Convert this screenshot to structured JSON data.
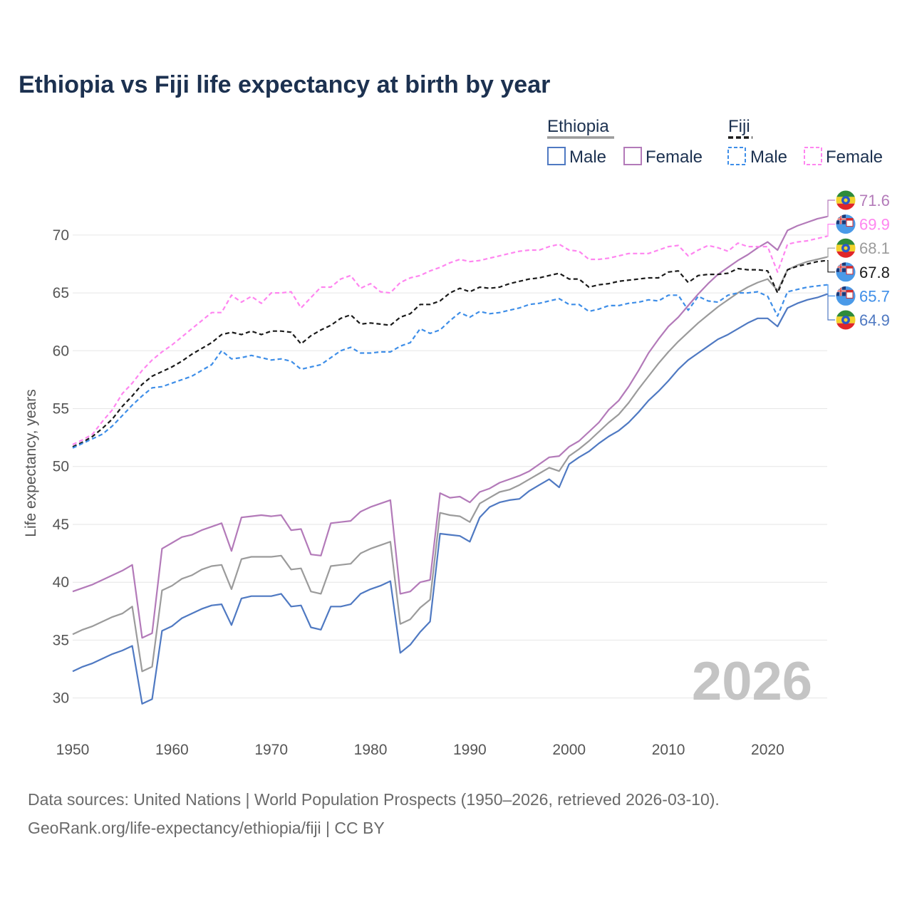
{
  "title": "Ethiopia vs Fiji life expectancy at birth by year",
  "watermark_year": "2026",
  "source_line1": "Data sources: United Nations | World Population Prospects (1950–2026, retrieved 2026-03-10).",
  "source_line2": "GeoRank.org/life-expectancy/ethiopia/fiji | CC BY",
  "legend": {
    "ethiopia_label": "Ethiopia",
    "fiji_label": "Fiji",
    "items": [
      {
        "country": "Ethiopia",
        "sex": "Male",
        "color": "#4f79c2",
        "dashed": false
      },
      {
        "country": "Ethiopia",
        "sex": "Female",
        "color": "#b37ab9",
        "dashed": false
      },
      {
        "country": "Fiji",
        "sex": "Male",
        "color": "#3e8ee8",
        "dashed": true
      },
      {
        "country": "Fiji",
        "sex": "Female",
        "color": "#ff85f0",
        "dashed": true
      }
    ]
  },
  "chart_data": {
    "type": "line",
    "title": "Ethiopia vs Fiji life expectancy at birth by year",
    "xlabel": "",
    "ylabel": "Life expectancy, years",
    "xlim": [
      1950,
      2026
    ],
    "ylim": [
      26.9,
      74.3
    ],
    "x_ticks": [
      1950,
      1960,
      1970,
      1980,
      1990,
      2000,
      2010,
      2020
    ],
    "y_ticks": [
      30,
      35,
      40,
      45,
      50,
      55,
      60,
      65,
      70
    ],
    "grid": true,
    "legend_position": "top-right",
    "x": [
      1950,
      1951,
      1952,
      1953,
      1954,
      1955,
      1956,
      1957,
      1958,
      1959,
      1960,
      1961,
      1962,
      1963,
      1964,
      1965,
      1966,
      1967,
      1968,
      1969,
      1970,
      1971,
      1972,
      1973,
      1974,
      1975,
      1976,
      1977,
      1978,
      1979,
      1980,
      1981,
      1982,
      1983,
      1984,
      1985,
      1986,
      1987,
      1988,
      1989,
      1990,
      1991,
      1992,
      1993,
      1994,
      1995,
      1996,
      1997,
      1998,
      1999,
      2000,
      2001,
      2002,
      2003,
      2004,
      2005,
      2006,
      2007,
      2008,
      2009,
      2010,
      2011,
      2012,
      2013,
      2014,
      2015,
      2016,
      2017,
      2018,
      2019,
      2020,
      2021,
      2022,
      2023,
      2024,
      2025,
      2026
    ],
    "series": [
      {
        "name": "Ethiopia Female",
        "color": "#b37ab9",
        "dashed": false,
        "end_label": "71.6",
        "flag": "ethiopia",
        "values": [
          39.2,
          39.5,
          39.8,
          40.2,
          40.6,
          41.0,
          41.5,
          35.2,
          35.6,
          42.9,
          43.4,
          43.9,
          44.1,
          44.5,
          44.8,
          45.1,
          42.7,
          45.6,
          45.7,
          45.8,
          45.7,
          45.8,
          44.5,
          44.6,
          42.4,
          42.3,
          45.1,
          45.2,
          45.3,
          46.1,
          46.5,
          46.8,
          47.1,
          39.0,
          39.2,
          40.0,
          40.2,
          47.7,
          47.3,
          47.4,
          46.9,
          47.8,
          48.1,
          48.6,
          48.9,
          49.2,
          49.6,
          50.2,
          50.8,
          50.9,
          51.7,
          52.2,
          53.0,
          53.8,
          54.9,
          55.7,
          56.9,
          58.3,
          59.8,
          61.0,
          62.1,
          62.9,
          63.9,
          64.9,
          65.8,
          66.6,
          67.2,
          67.8,
          68.3,
          68.9,
          69.4,
          68.7,
          70.4,
          70.8,
          71.1,
          71.4,
          71.6
        ]
      },
      {
        "name": "Ethiopia Total",
        "color": "#9b9b9b",
        "dashed": false,
        "end_label": "68.1",
        "flag": "ethiopia",
        "values": [
          35.5,
          35.9,
          36.2,
          36.6,
          37.0,
          37.3,
          37.9,
          32.3,
          32.7,
          39.3,
          39.7,
          40.3,
          40.6,
          41.1,
          41.4,
          41.5,
          39.4,
          42.0,
          42.2,
          42.2,
          42.2,
          42.3,
          41.1,
          41.2,
          39.2,
          39.0,
          41.4,
          41.5,
          41.6,
          42.5,
          42.9,
          43.2,
          43.5,
          36.4,
          36.8,
          37.8,
          38.5,
          46.0,
          45.8,
          45.7,
          45.2,
          46.8,
          47.3,
          47.8,
          48.0,
          48.4,
          48.9,
          49.4,
          49.9,
          49.6,
          50.9,
          51.5,
          52.2,
          53.0,
          53.8,
          54.5,
          55.5,
          56.7,
          57.8,
          58.9,
          59.9,
          60.8,
          61.6,
          62.4,
          63.1,
          63.8,
          64.4,
          65.0,
          65.5,
          65.9,
          66.2,
          65.2,
          67.0,
          67.4,
          67.7,
          67.9,
          68.1
        ]
      },
      {
        "name": "Ethiopia Male",
        "color": "#4f79c2",
        "dashed": false,
        "end_label": "64.9",
        "flag": "ethiopia",
        "values": [
          32.3,
          32.7,
          33.0,
          33.4,
          33.8,
          34.1,
          34.5,
          29.5,
          29.9,
          35.8,
          36.2,
          36.9,
          37.3,
          37.7,
          38.0,
          38.1,
          36.3,
          38.6,
          38.8,
          38.8,
          38.8,
          39.0,
          37.9,
          38.0,
          36.1,
          35.9,
          37.9,
          37.9,
          38.1,
          39.0,
          39.4,
          39.7,
          40.1,
          33.9,
          34.6,
          35.7,
          36.6,
          44.2,
          44.1,
          44.0,
          43.5,
          45.6,
          46.5,
          46.9,
          47.1,
          47.2,
          47.9,
          48.4,
          48.9,
          48.2,
          50.2,
          50.8,
          51.3,
          52.0,
          52.6,
          53.1,
          53.8,
          54.7,
          55.7,
          56.5,
          57.4,
          58.4,
          59.2,
          59.8,
          60.4,
          61.0,
          61.4,
          61.9,
          62.4,
          62.8,
          62.8,
          62.1,
          63.7,
          64.1,
          64.4,
          64.6,
          64.9
        ]
      },
      {
        "name": "Fiji Female",
        "color": "#ff85f0",
        "dashed": true,
        "end_label": "69.9",
        "flag": "fiji",
        "values": [
          51.9,
          52.3,
          52.8,
          53.9,
          54.9,
          56.3,
          57.2,
          58.3,
          59.2,
          59.9,
          60.5,
          61.2,
          61.9,
          62.6,
          63.3,
          63.3,
          64.8,
          64.2,
          64.7,
          64.1,
          65.0,
          65.0,
          65.1,
          63.7,
          64.6,
          65.5,
          65.5,
          66.2,
          66.5,
          65.4,
          65.8,
          65.1,
          65.0,
          65.9,
          66.3,
          66.5,
          66.9,
          67.2,
          67.6,
          67.9,
          67.7,
          67.8,
          68.0,
          68.2,
          68.4,
          68.6,
          68.7,
          68.7,
          69.0,
          69.2,
          68.7,
          68.6,
          67.9,
          67.9,
          68.0,
          68.2,
          68.4,
          68.4,
          68.4,
          68.7,
          69.0,
          69.1,
          68.2,
          68.7,
          69.1,
          68.9,
          68.6,
          69.3,
          69.0,
          69.0,
          69.0,
          66.8,
          69.2,
          69.4,
          69.5,
          69.7,
          69.9
        ]
      },
      {
        "name": "Fiji Total",
        "color": "#1a1a1a",
        "dashed": true,
        "end_label": "67.8",
        "flag": "fiji",
        "values": [
          51.7,
          52.1,
          52.6,
          53.3,
          54.1,
          55.2,
          56.1,
          57.1,
          57.8,
          58.2,
          58.6,
          59.1,
          59.7,
          60.2,
          60.7,
          61.4,
          61.6,
          61.4,
          61.7,
          61.4,
          61.7,
          61.7,
          61.6,
          60.6,
          61.3,
          61.8,
          62.2,
          62.8,
          63.1,
          62.3,
          62.4,
          62.3,
          62.2,
          62.9,
          63.2,
          64.0,
          64.0,
          64.3,
          65.0,
          65.4,
          65.1,
          65.5,
          65.4,
          65.5,
          65.8,
          66.0,
          66.2,
          66.3,
          66.5,
          66.7,
          66.2,
          66.2,
          65.5,
          65.7,
          65.8,
          66.0,
          66.1,
          66.2,
          66.3,
          66.3,
          66.8,
          66.9,
          65.9,
          66.5,
          66.6,
          66.6,
          66.7,
          67.1,
          67.0,
          67.0,
          66.9,
          65.0,
          67.0,
          67.3,
          67.5,
          67.7,
          67.8
        ]
      },
      {
        "name": "Fiji Male",
        "color": "#3e8ee8",
        "dashed": true,
        "end_label": "65.7",
        "flag": "fiji",
        "values": [
          51.6,
          52.0,
          52.4,
          52.8,
          53.5,
          54.4,
          55.3,
          56.1,
          56.8,
          56.9,
          57.2,
          57.5,
          57.8,
          58.3,
          58.8,
          60.0,
          59.3,
          59.4,
          59.6,
          59.4,
          59.2,
          59.3,
          59.1,
          58.4,
          58.6,
          58.8,
          59.4,
          60.0,
          60.3,
          59.8,
          59.8,
          59.9,
          59.9,
          60.4,
          60.7,
          61.9,
          61.5,
          61.8,
          62.6,
          63.3,
          62.9,
          63.4,
          63.2,
          63.3,
          63.5,
          63.7,
          64.0,
          64.1,
          64.3,
          64.5,
          64.0,
          64.0,
          63.4,
          63.6,
          63.9,
          63.9,
          64.1,
          64.2,
          64.4,
          64.3,
          64.8,
          64.8,
          63.5,
          64.7,
          64.3,
          64.2,
          64.8,
          65.0,
          65.0,
          65.1,
          64.7,
          63.0,
          65.1,
          65.3,
          65.5,
          65.6,
          65.7
        ]
      }
    ]
  }
}
